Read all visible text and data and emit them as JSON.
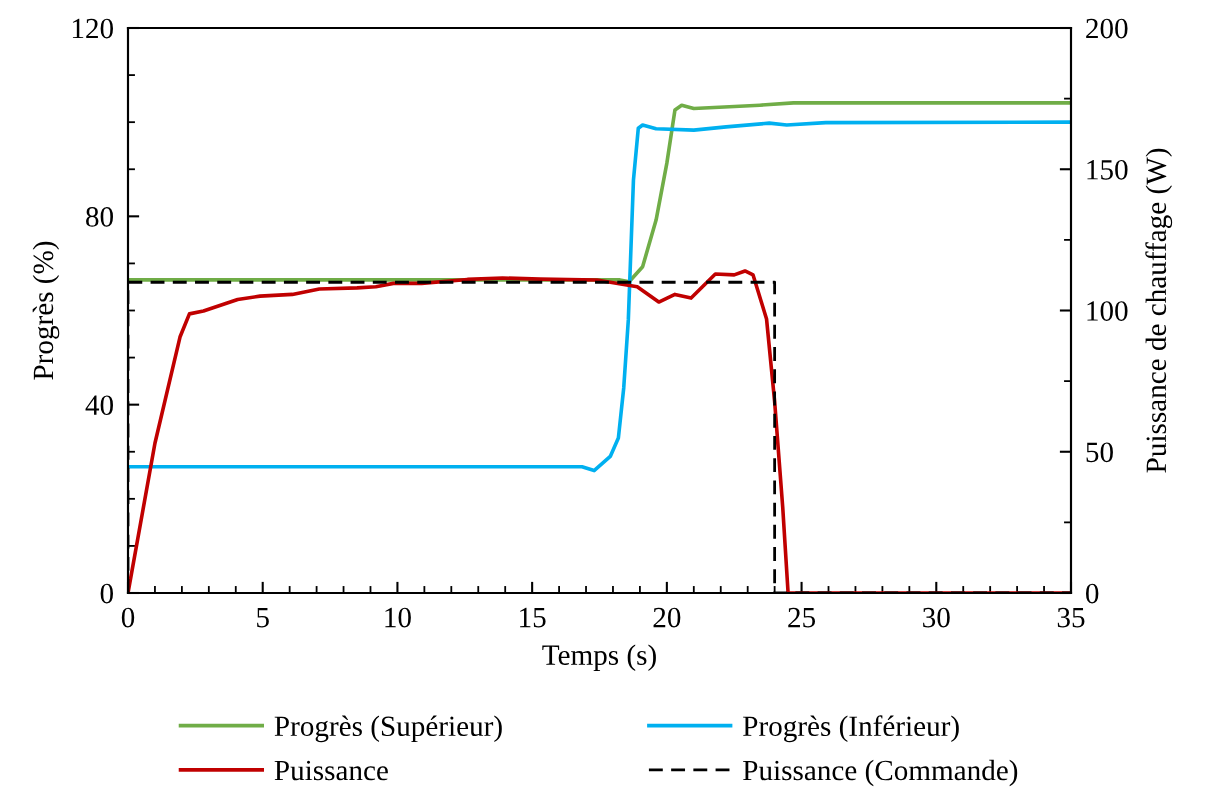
{
  "chart_data": {
    "type": "line",
    "xlabel": "Temps (s)",
    "ylabel": "Progrès (%)",
    "y2label": "Puissance de chauffage (W)",
    "xlim": [
      0,
      35
    ],
    "ylim": [
      0,
      120
    ],
    "y2lim": [
      0,
      200
    ],
    "xticks": [
      0,
      {
        "value": 1,
        "label": null
      },
      {
        "value": 2,
        "label": null
      },
      {
        "value": 3,
        "label": null
      },
      {
        "value": 4,
        "label": null
      },
      5,
      {
        "value": 6,
        "label": null
      },
      {
        "value": 7,
        "label": null
      },
      {
        "value": 8,
        "label": null
      },
      {
        "value": 9,
        "label": null
      },
      10,
      {
        "value": 11,
        "label": null
      },
      {
        "value": 12,
        "label": null
      },
      {
        "value": 13,
        "label": null
      },
      {
        "value": 14,
        "label": null
      },
      15,
      {
        "value": 16,
        "label": null
      },
      {
        "value": 17,
        "label": null
      },
      {
        "value": 18,
        "label": null
      },
      {
        "value": 19,
        "label": null
      },
      20,
      {
        "value": 21,
        "label": null
      },
      {
        "value": 22,
        "label": null
      },
      {
        "value": 23,
        "label": null
      },
      {
        "value": 24,
        "label": null
      },
      25,
      {
        "value": 26,
        "label": null
      },
      {
        "value": 27,
        "label": null
      },
      {
        "value": 28,
        "label": null
      },
      {
        "value": 29,
        "label": null
      },
      30,
      {
        "value": 31,
        "label": null
      },
      {
        "value": 32,
        "label": null
      },
      {
        "value": 33,
        "label": null
      },
      {
        "value": 34,
        "label": null
      },
      35
    ],
    "yticks": [
      0,
      {
        "value": 10,
        "label": null
      },
      {
        "value": 20,
        "label": null
      },
      {
        "value": 30,
        "label": null
      },
      40,
      {
        "value": 50,
        "label": null
      },
      {
        "value": 60,
        "label": null
      },
      {
        "value": 70,
        "label": null
      },
      80,
      {
        "value": 90,
        "label": null
      },
      {
        "value": 100,
        "label": null
      },
      {
        "value": 110,
        "label": null
      },
      120
    ],
    "y2ticks": [
      0,
      {
        "value": 25,
        "label": null
      },
      50,
      {
        "value": 75,
        "label": null
      },
      100,
      {
        "value": 125,
        "label": null
      },
      150,
      {
        "value": 175,
        "label": null
      },
      200
    ],
    "grid": false,
    "legend": "bottom",
    "series": [
      {
        "name": "Progrès (Supérieur)",
        "color": "#70ad47",
        "line_style": "solid",
        "x": [
          0,
          17.4,
          18.26,
          18.6,
          19.1,
          19.6,
          20.0,
          20.3,
          20.55,
          21.0,
          23.45,
          24.7,
          35
        ],
        "values": [
          66.5,
          66.5,
          66.5,
          66.1,
          69.3,
          79.2,
          91.3,
          102.6,
          103.6,
          102.9,
          103.6,
          104.1,
          104.1
        ]
      },
      {
        "name": "Progrès (Inférieur)",
        "color": "#00b0f0",
        "line_style": "solid",
        "x": [
          0,
          16.85,
          17.3,
          17.9,
          18.2,
          18.4,
          18.57,
          18.76,
          18.94,
          19.1,
          19.6,
          21.0,
          22.2,
          23.8,
          24.45,
          25.9,
          35
        ],
        "values": [
          26.8,
          26.8,
          26.0,
          29,
          32.9,
          43.6,
          58,
          87.7,
          98.7,
          99.4,
          98.6,
          98.3,
          99.0,
          99.8,
          99.4,
          99.9,
          100.0
        ]
      },
      {
        "name": "Puissance",
        "color": "#c00000",
        "line_style": "solid",
        "axis": "y2",
        "x": [
          0,
          1.0,
          1.93,
          2.28,
          2.8,
          4.07,
          4.9,
          6.1,
          7.1,
          8.5,
          9.2,
          9.85,
          10.9,
          12.6,
          13.9,
          15.3,
          17.4,
          18.4,
          18.9,
          19.7,
          20.3,
          20.9,
          21.8,
          22.5,
          22.9,
          23.2,
          23.7,
          24.0,
          24.3,
          24.5,
          35
        ],
        "values": [
          0,
          53,
          90.6,
          98.8,
          99.8,
          103.9,
          105.1,
          105.7,
          107.6,
          108,
          108.4,
          109.6,
          109.6,
          111,
          111.5,
          111.1,
          110.8,
          109.2,
          108.4,
          103,
          105.7,
          104.4,
          112.9,
          112.6,
          114,
          112.6,
          97,
          67.8,
          30.4,
          0,
          0
        ]
      },
      {
        "name": "Puissance (Commande)",
        "color": "#000000",
        "line_style": "dashed",
        "axis": "y2",
        "x": [
          0,
          0,
          24.0,
          24.0,
          35
        ],
        "values": [
          0,
          110,
          110,
          0,
          0
        ]
      }
    ]
  }
}
